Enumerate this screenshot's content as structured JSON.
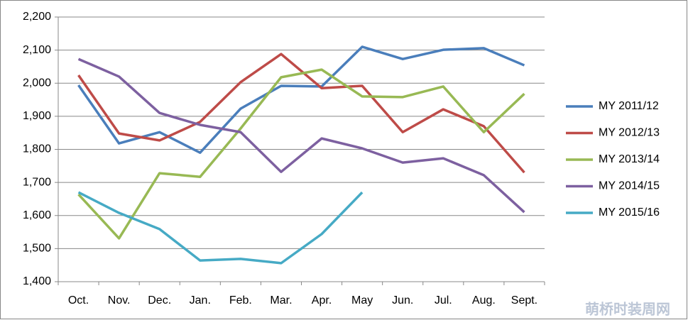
{
  "chart_data": {
    "type": "line",
    "categories": [
      "Oct.",
      "Nov.",
      "Dec.",
      "Jan.",
      "Feb.",
      "Mar.",
      "Apr.",
      "May",
      "Jun.",
      "Jul.",
      "Aug.",
      "Sept."
    ],
    "series": [
      {
        "name": "MY 2011/12",
        "color": "#4a7ebb",
        "values": [
          1994,
          1818,
          1852,
          1790,
          1923,
          1992,
          1990,
          2110,
          2073,
          2101,
          2106,
          2054
        ]
      },
      {
        "name": "MY 2012/13",
        "color": "#be4b48",
        "values": [
          2024,
          1848,
          1827,
          1883,
          2003,
          2088,
          1985,
          1992,
          1852,
          1921,
          1870,
          1730
        ]
      },
      {
        "name": "MY 2013/14",
        "color": "#98b954",
        "values": [
          1664,
          1531,
          1728,
          1717,
          1863,
          2018,
          2041,
          1960,
          1958,
          1990,
          1852,
          1968
        ]
      },
      {
        "name": "MY 2014/15",
        "color": "#7d60a0",
        "values": [
          2073,
          2020,
          1910,
          1874,
          1852,
          1732,
          1833,
          1803,
          1760,
          1773,
          1722,
          1610
        ]
      },
      {
        "name": "MY 2015/16",
        "color": "#46aac5",
        "values": [
          1670,
          1608,
          1559,
          1464,
          1469,
          1456,
          1544,
          1670,
          null,
          null,
          null,
          null
        ]
      }
    ],
    "ylim": [
      1400,
      2200
    ],
    "yticks": [
      {
        "value": 1400,
        "label": "1,400"
      },
      {
        "value": 1500,
        "label": "1,500"
      },
      {
        "value": 1600,
        "label": "1,600"
      },
      {
        "value": 1700,
        "label": "1,700"
      },
      {
        "value": 1800,
        "label": "1,800"
      },
      {
        "value": 1900,
        "label": "1,900"
      },
      {
        "value": 2000,
        "label": "2,000"
      },
      {
        "value": 2100,
        "label": "2,100"
      },
      {
        "value": 2200,
        "label": "2,200"
      }
    ],
    "grid": true,
    "legend": "right",
    "watermark": "萌桥时装周网"
  }
}
